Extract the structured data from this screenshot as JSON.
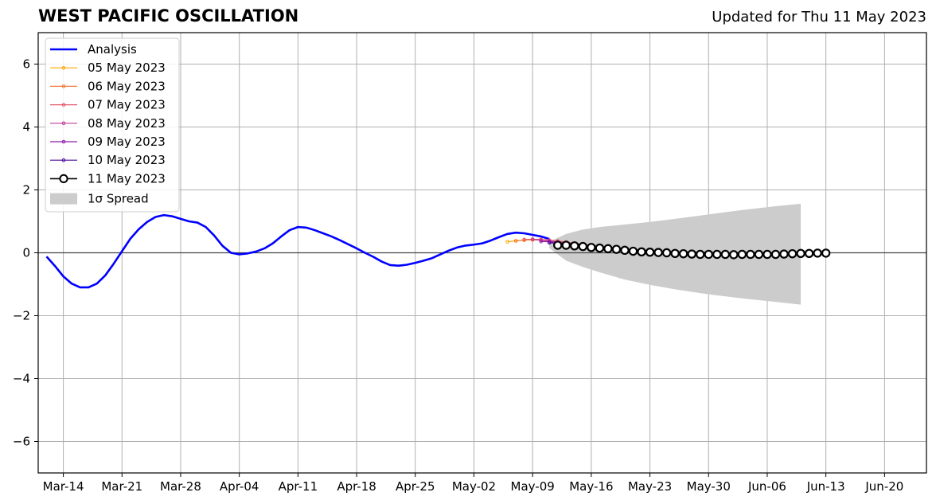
{
  "chart_data": {
    "type": "line",
    "title": "WEST PACIFIC OSCILLATION",
    "subtitle": "Updated for Thu 11 May 2023",
    "xlabel": "",
    "ylabel": "",
    "ylim": [
      -7,
      7
    ],
    "xlim": [
      "2023-03-11",
      "2023-06-25"
    ],
    "yticks": [
      -6,
      -4,
      -2,
      0,
      2,
      4,
      6
    ],
    "ytick_labels": [
      "−6",
      "−4",
      "−2",
      "0",
      "2",
      "4",
      "6"
    ],
    "xticks": [
      "2023-03-14",
      "2023-03-21",
      "2023-03-28",
      "2023-04-04",
      "2023-04-11",
      "2023-04-18",
      "2023-04-25",
      "2023-05-02",
      "2023-05-09",
      "2023-05-16",
      "2023-05-23",
      "2023-05-30",
      "2023-06-06",
      "2023-06-13",
      "2023-06-20"
    ],
    "xtick_labels": [
      "Mar-14",
      "Mar-21",
      "Mar-28",
      "Apr-04",
      "Apr-11",
      "Apr-18",
      "Apr-25",
      "May-02",
      "May-09",
      "May-16",
      "May-23",
      "May-30",
      "Jun-06",
      "Jun-13",
      "Jun-20"
    ],
    "grid": true,
    "legend_position": "top-left",
    "analysis": {
      "name": "Analysis",
      "color": "#0000ff",
      "x": [
        "2023-03-12",
        "2023-03-13",
        "2023-03-14",
        "2023-03-15",
        "2023-03-16",
        "2023-03-17",
        "2023-03-18",
        "2023-03-19",
        "2023-03-20",
        "2023-03-21",
        "2023-03-22",
        "2023-03-23",
        "2023-03-24",
        "2023-03-25",
        "2023-03-26",
        "2023-03-27",
        "2023-03-28",
        "2023-03-29",
        "2023-03-30",
        "2023-03-31",
        "2023-04-01",
        "2023-04-02",
        "2023-04-03",
        "2023-04-04",
        "2023-04-05",
        "2023-04-06",
        "2023-04-07",
        "2023-04-08",
        "2023-04-09",
        "2023-04-10",
        "2023-04-11",
        "2023-04-12",
        "2023-04-13",
        "2023-04-14",
        "2023-04-15",
        "2023-04-16",
        "2023-04-17",
        "2023-04-18",
        "2023-04-19",
        "2023-04-20",
        "2023-04-21",
        "2023-04-22",
        "2023-04-23",
        "2023-04-24",
        "2023-04-25",
        "2023-04-26",
        "2023-04-27",
        "2023-04-28",
        "2023-04-29",
        "2023-04-30",
        "2023-05-01",
        "2023-05-02",
        "2023-05-03",
        "2023-05-04",
        "2023-05-05",
        "2023-05-06",
        "2023-05-07",
        "2023-05-08",
        "2023-05-09",
        "2023-05-10",
        "2023-05-11"
      ],
      "y": [
        -0.12,
        -0.42,
        -0.75,
        -0.98,
        -1.1,
        -1.1,
        -0.98,
        -0.72,
        -0.35,
        0.05,
        0.45,
        0.75,
        0.98,
        1.14,
        1.2,
        1.16,
        1.08,
        1.0,
        0.96,
        0.82,
        0.55,
        0.22,
        0.0,
        -0.05,
        -0.02,
        0.04,
        0.14,
        0.3,
        0.52,
        0.72,
        0.82,
        0.8,
        0.72,
        0.62,
        0.52,
        0.4,
        0.27,
        0.14,
        0.0,
        -0.13,
        -0.28,
        -0.39,
        -0.41,
        -0.38,
        -0.32,
        -0.25,
        -0.17,
        -0.05,
        0.07,
        0.17,
        0.23,
        0.26,
        0.3,
        0.39,
        0.5,
        0.6,
        0.64,
        0.62,
        0.57,
        0.52,
        0.44
      ]
    },
    "forecasts": [
      {
        "name": "05 May 2023",
        "color": "#ffa500",
        "start": "2023-05-06",
        "y": [
          0.35,
          0.38,
          0.4,
          0.41,
          0.4,
          0.38
        ]
      },
      {
        "name": "06 May 2023",
        "color": "#f37a3b",
        "start": "2023-05-07",
        "y": [
          0.38,
          0.41,
          0.43,
          0.42,
          0.4,
          0.37,
          0.34
        ]
      },
      {
        "name": "07 May 2023",
        "color": "#e5566a",
        "start": "2023-05-08",
        "y": [
          0.42,
          0.43,
          0.42,
          0.4,
          0.37,
          0.34,
          0.3,
          0.27
        ]
      },
      {
        "name": "08 May 2023",
        "color": "#c03a9a",
        "start": "2023-05-09",
        "y": [
          0.42,
          0.4,
          0.38,
          0.35,
          0.32,
          0.29,
          0.25,
          0.22,
          0.19,
          0.16,
          0.13,
          0.11,
          0.09,
          0.07,
          0.06,
          0.05,
          0.04,
          0.03,
          0.03,
          0.02,
          0.02,
          0.02,
          0.01,
          0.01
        ]
      },
      {
        "name": "09 May 2023",
        "color": "#8e1fb0",
        "start": "2023-05-10",
        "y": [
          0.36,
          0.35,
          0.33,
          0.31,
          0.29,
          0.26,
          0.23,
          0.2,
          0.17,
          0.14,
          0.12,
          0.1,
          0.08,
          0.06,
          0.05,
          0.04,
          0.03,
          0.02
        ]
      },
      {
        "name": "10 May 2023",
        "color": "#4b0a9c",
        "start": "2023-05-11",
        "y": [
          0.32,
          0.3,
          0.28,
          0.26,
          0.24,
          0.21,
          0.18,
          0.15,
          0.12,
          0.1,
          0.08,
          0.06,
          0.04,
          0.03,
          0.02
        ]
      },
      {
        "name": "11 May 2023",
        "color": "#000000",
        "marker_face": "#ffffff",
        "start": "2023-05-12",
        "y": [
          0.24,
          0.24,
          0.22,
          0.2,
          0.17,
          0.15,
          0.13,
          0.11,
          0.08,
          0.05,
          0.03,
          0.02,
          0.01,
          0.0,
          -0.02,
          -0.03,
          -0.04,
          -0.05,
          -0.05,
          -0.05,
          -0.05,
          -0.06,
          -0.05,
          -0.05,
          -0.05,
          -0.05,
          -0.05,
          -0.04,
          -0.03,
          -0.02,
          -0.02,
          -0.01,
          -0.01
        ]
      }
    ],
    "spread": {
      "name": "1σ Spread",
      "color": "#cccccc",
      "x": [
        "2023-05-11",
        "2023-05-13",
        "2023-05-15",
        "2023-05-17",
        "2023-05-20",
        "2023-05-23",
        "2023-05-26",
        "2023-05-30",
        "2023-06-03",
        "2023-06-07",
        "2023-06-10"
      ],
      "upper": [
        0.35,
        0.6,
        0.74,
        0.82,
        0.9,
        0.98,
        1.08,
        1.22,
        1.36,
        1.48,
        1.56
      ],
      "lower": [
        0.15,
        -0.25,
        -0.45,
        -0.62,
        -0.85,
        -1.02,
        -1.16,
        -1.32,
        -1.45,
        -1.56,
        -1.65
      ]
    }
  }
}
